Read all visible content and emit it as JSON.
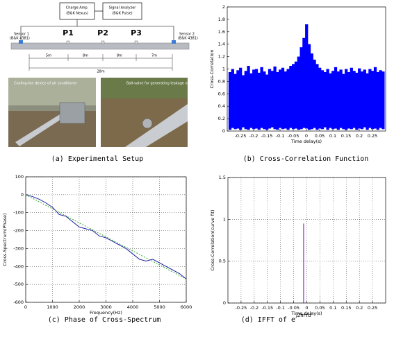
{
  "setup": {
    "charge_amp": [
      "Charge Amp.",
      "(B&K Nexus)"
    ],
    "analyzer": [
      "Signal Analyzer",
      "(B&K Pulse)"
    ],
    "sensor1": [
      "Sensor 1",
      "(B&K 4381)"
    ],
    "sensor2": [
      "Sensor 2",
      "(B&K 4381)"
    ],
    "points": [
      "P1",
      "P2",
      "P3"
    ],
    "distances": [
      "5m",
      "8m",
      "8m",
      "7m"
    ],
    "total": "28m",
    "photo_labels": [
      "Cooling-fan device of air conditioner",
      "Ball-valve for generating leakage of the pipe"
    ],
    "caption": "(a) Experimental Setup"
  },
  "chart_data": [
    {
      "type": "range",
      "caption": "(b) Cross-Correlation Function",
      "ylabel": "Cross-Correlation",
      "xlabel": "Time delay(s)",
      "color": "#0000ff",
      "grid": false,
      "xlim": [
        -0.3,
        0.3
      ],
      "xticks": [
        -0.25,
        -0.2,
        -0.15,
        -0.1,
        -0.05,
        0,
        0.05,
        0.1,
        0.15,
        0.2,
        0.25
      ],
      "ylim": [
        0,
        2
      ],
      "yticks": [
        0,
        0.2,
        0.4,
        0.6,
        0.8,
        1,
        1.2,
        1.4,
        1.6,
        1.8,
        2
      ],
      "x": [
        -0.29,
        -0.28,
        -0.27,
        -0.26,
        -0.25,
        -0.24,
        -0.23,
        -0.22,
        -0.21,
        -0.2,
        -0.19,
        -0.18,
        -0.17,
        -0.16,
        -0.15,
        -0.14,
        -0.13,
        -0.12,
        -0.11,
        -0.1,
        -0.09,
        -0.08,
        -0.07,
        -0.06,
        -0.05,
        -0.04,
        -0.03,
        -0.02,
        -0.01,
        0,
        0.01,
        0.02,
        0.03,
        0.04,
        0.05,
        0.06,
        0.07,
        0.08,
        0.09,
        0.1,
        0.11,
        0.12,
        0.13,
        0.14,
        0.15,
        0.16,
        0.17,
        0.18,
        0.19,
        0.2,
        0.21,
        0.22,
        0.23,
        0.24,
        0.25,
        0.26,
        0.27,
        0.28,
        0.29
      ],
      "high": [
        0.95,
        1.0,
        0.92,
        0.98,
        1.02,
        0.9,
        0.97,
        1.05,
        0.93,
        0.99,
        1.0,
        0.94,
        1.03,
        0.96,
        0.91,
        1.0,
        0.97,
        1.04,
        0.95,
        0.99,
        1.02,
        0.96,
        1.0,
        1.05,
        1.08,
        1.12,
        1.2,
        1.35,
        1.5,
        1.72,
        1.4,
        1.25,
        1.15,
        1.08,
        1.02,
        0.98,
        0.95,
        1.0,
        0.93,
        0.97,
        1.03,
        0.96,
        0.99,
        0.92,
        1.0,
        0.95,
        1.02,
        0.97,
        0.94,
        1.01,
        0.96,
        0.99,
        0.93,
        1.0,
        0.97,
        1.03,
        0.95,
        0.98,
        0.96
      ],
      "low": [
        0.02,
        0.05,
        0.03,
        0.04,
        0.02,
        0.06,
        0.03,
        0.02,
        0.05,
        0.03,
        0.04,
        0.02,
        0.05,
        0.03,
        0.02,
        0.04,
        0.06,
        0.03,
        0.02,
        0.05,
        0.03,
        0.04,
        0.02,
        0.05,
        0.03,
        0.04,
        0.02,
        0.03,
        0.05,
        0.04,
        0.02,
        0.03,
        0.05,
        0.02,
        0.04,
        0.03,
        0.06,
        0.02,
        0.05,
        0.03,
        0.04,
        0.02,
        0.05,
        0.03,
        0.02,
        0.04,
        0.03,
        0.05,
        0.02,
        0.04,
        0.03,
        0.06,
        0.02,
        0.05,
        0.03,
        0.04,
        0.02,
        0.05,
        0.03
      ]
    },
    {
      "type": "line",
      "caption": "(c) Phase of Cross-Spectrum",
      "ylabel": "Cross-Spectrum(Phase)",
      "xlabel": "Frequency(Hz)",
      "grid": true,
      "xlim": [
        0,
        6000
      ],
      "xticks": [
        0,
        1000,
        2000,
        3000,
        4000,
        5000,
        6000
      ],
      "ylim": [
        -600,
        100
      ],
      "yticks": [
        -600,
        -500,
        -400,
        -300,
        -200,
        -100,
        0,
        100
      ],
      "series": [
        {
          "color": "#1a1aa0",
          "dashed": false,
          "x": [
            0,
            250,
            500,
            750,
            1000,
            1250,
            1500,
            1750,
            2000,
            2250,
            2500,
            2750,
            3000,
            3250,
            3500,
            3750,
            4000,
            4250,
            4500,
            4750,
            5000,
            5250,
            5500,
            5750,
            6000
          ],
          "values": [
            0,
            -10,
            -25,
            -45,
            -70,
            -110,
            -120,
            -150,
            -180,
            -190,
            -200,
            -230,
            -240,
            -260,
            -280,
            -300,
            -330,
            -360,
            -370,
            -360,
            -380,
            -400,
            -420,
            -440,
            -470
          ]
        },
        {
          "color": "#33aa33",
          "dashed": true,
          "x": [
            0,
            6000
          ],
          "values": [
            0,
            -470
          ]
        }
      ]
    },
    {
      "type": "stem",
      "caption": "(d) IFFT of e",
      "caption_exp": "j2πfτd",
      "ylabel": "Cross-Correlation(curve fit)",
      "xlabel": "Time delay(s)",
      "color": "#8a2be2",
      "grid": true,
      "xlim": [
        -0.3,
        0.3
      ],
      "xticks": [
        -0.25,
        -0.2,
        -0.15,
        -0.1,
        -0.05,
        0,
        0.05,
        0.1,
        0.15,
        0.2,
        0.25
      ],
      "ylim": [
        0,
        1.5
      ],
      "yticks": [
        0,
        0.5,
        1,
        1.5
      ],
      "x": [
        -0.012
      ],
      "values": [
        0.95
      ]
    }
  ]
}
